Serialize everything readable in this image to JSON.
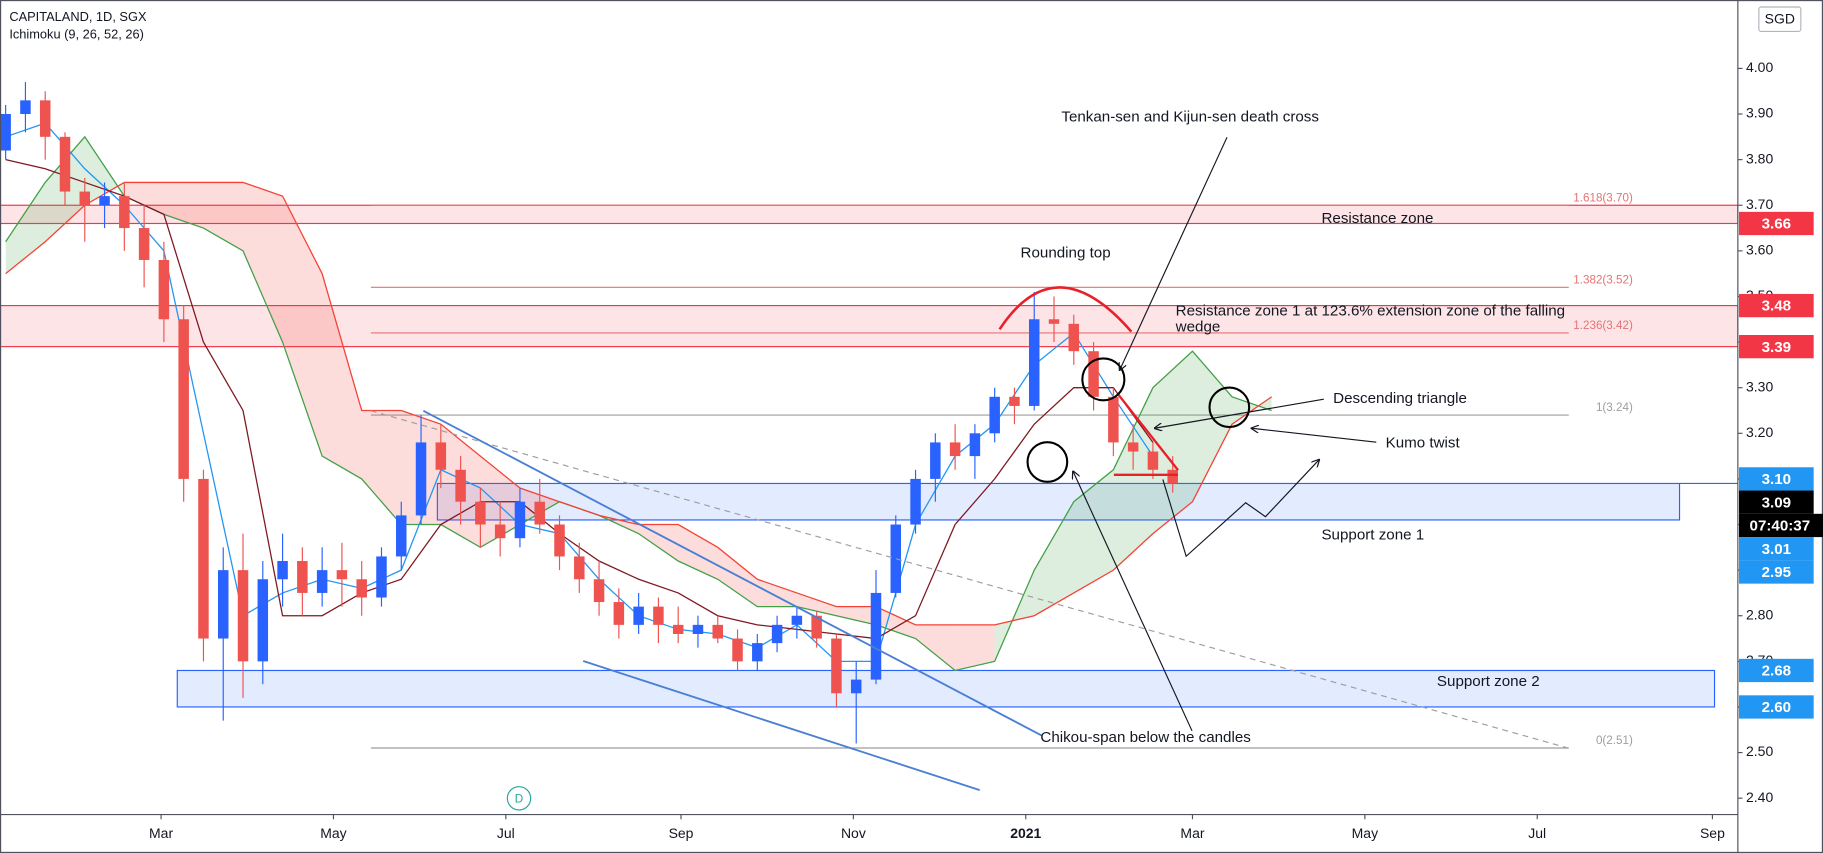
{
  "chart_data": {
    "type": "candlestick",
    "title": "CAPITALAND, 1D, SGX",
    "currency": "SGD",
    "marker_label": "D",
    "xlim": [
      "2020-01-04",
      "2021-09-10"
    ],
    "xticks": [
      {
        "value": "2020-03-01",
        "label": "Mar"
      },
      {
        "value": "2020-05-01",
        "label": "May"
      },
      {
        "value": "2020-07-01",
        "label": "Jul"
      },
      {
        "value": "2020-09-01",
        "label": "Sep"
      },
      {
        "value": "2020-11-01",
        "label": "Nov"
      },
      {
        "value": "2021-01-01",
        "label": "2021"
      },
      {
        "value": "2021-03-01",
        "label": "Mar"
      },
      {
        "value": "2021-05-01",
        "label": "May"
      },
      {
        "value": "2021-07-01",
        "label": "Jul"
      },
      {
        "value": "2021-09-01",
        "label": "Sep"
      }
    ],
    "ylim": [
      2.364,
      4.15
    ],
    "yticks": [
      {
        "value": 2.4,
        "label": "2.40"
      },
      {
        "value": 2.5,
        "label": "2.50"
      },
      {
        "value": 2.6,
        "label": "2.60"
      },
      {
        "value": 2.7,
        "label": "2.70"
      },
      {
        "value": 2.8,
        "label": "2.80"
      },
      {
        "value": 2.9,
        "label": "2.90"
      },
      {
        "value": 3.0,
        "label": "3.00"
      },
      {
        "value": 3.1,
        "label": "3.10"
      },
      {
        "value": 3.2,
        "label": "3.20"
      },
      {
        "value": 3.3,
        "label": "3.30"
      },
      {
        "value": 3.4,
        "label": "3.40"
      },
      {
        "value": 3.5,
        "label": "3.50"
      },
      {
        "value": 3.6,
        "label": "3.60"
      },
      {
        "value": 3.7,
        "label": "3.70"
      },
      {
        "value": 3.8,
        "label": "3.80"
      },
      {
        "value": 3.9,
        "label": "3.90"
      },
      {
        "value": 4.0,
        "label": "4.00"
      }
    ],
    "grid": false,
    "candles": {
      "up_color": "#2962ff",
      "down_color": "#ef5350",
      "x": [
        "2020-01-06",
        "2020-01-13",
        "2020-01-20",
        "2020-01-27",
        "2020-02-03",
        "2020-02-10",
        "2020-02-17",
        "2020-02-24",
        "2020-03-02",
        "2020-03-09",
        "2020-03-16",
        "2020-03-23",
        "2020-03-30",
        "2020-04-06",
        "2020-04-13",
        "2020-04-20",
        "2020-04-27",
        "2020-05-04",
        "2020-05-11",
        "2020-05-18",
        "2020-05-25",
        "2020-06-01",
        "2020-06-08",
        "2020-06-15",
        "2020-06-22",
        "2020-06-29",
        "2020-07-06",
        "2020-07-13",
        "2020-07-20",
        "2020-07-27",
        "2020-08-03",
        "2020-08-10",
        "2020-08-17",
        "2020-08-24",
        "2020-08-31",
        "2020-09-07",
        "2020-09-14",
        "2020-09-21",
        "2020-09-28",
        "2020-10-05",
        "2020-10-12",
        "2020-10-19",
        "2020-10-26",
        "2020-11-02",
        "2020-11-09",
        "2020-11-16",
        "2020-11-23",
        "2020-11-30",
        "2020-12-07",
        "2020-12-14",
        "2020-12-21",
        "2020-12-28",
        "2021-01-04",
        "2021-01-11",
        "2021-01-18",
        "2021-01-25",
        "2021-02-01",
        "2021-02-08",
        "2021-02-15",
        "2021-02-22"
      ],
      "open": [
        3.82,
        3.9,
        3.93,
        3.85,
        3.73,
        3.7,
        3.72,
        3.65,
        3.58,
        3.45,
        3.1,
        2.75,
        2.9,
        2.7,
        2.88,
        2.92,
        2.85,
        2.9,
        2.88,
        2.84,
        2.93,
        3.02,
        3.18,
        3.12,
        3.05,
        3.0,
        2.97,
        3.05,
        3.0,
        2.93,
        2.88,
        2.83,
        2.78,
        2.82,
        2.78,
        2.76,
        2.78,
        2.75,
        2.7,
        2.74,
        2.78,
        2.8,
        2.75,
        2.63,
        2.66,
        2.85,
        3.0,
        3.1,
        3.18,
        3.15,
        3.2,
        3.28,
        3.26,
        3.45,
        3.44,
        3.38,
        3.28,
        3.18,
        3.16,
        3.12
      ],
      "high": [
        3.92,
        3.97,
        3.95,
        3.86,
        3.76,
        3.75,
        3.75,
        3.7,
        3.62,
        3.48,
        3.12,
        2.95,
        2.98,
        2.92,
        2.98,
        2.95,
        2.95,
        2.96,
        2.92,
        2.95,
        3.05,
        3.24,
        3.22,
        3.15,
        3.08,
        3.05,
        3.08,
        3.1,
        3.02,
        2.96,
        2.92,
        2.86,
        2.85,
        2.84,
        2.82,
        2.8,
        2.8,
        2.77,
        2.76,
        2.8,
        2.82,
        2.81,
        2.76,
        2.7,
        2.9,
        3.02,
        3.12,
        3.2,
        3.22,
        3.22,
        3.3,
        3.3,
        3.51,
        3.5,
        3.46,
        3.4,
        3.3,
        3.22,
        3.18,
        3.15
      ],
      "low": [
        3.8,
        3.86,
        3.8,
        3.7,
        3.62,
        3.65,
        3.6,
        3.52,
        3.4,
        3.05,
        2.7,
        2.57,
        2.62,
        2.65,
        2.82,
        2.8,
        2.82,
        2.82,
        2.8,
        2.82,
        2.9,
        3.0,
        3.08,
        3.0,
        2.95,
        2.93,
        2.95,
        2.98,
        2.9,
        2.85,
        2.8,
        2.75,
        2.76,
        2.74,
        2.74,
        2.73,
        2.74,
        2.68,
        2.68,
        2.72,
        2.75,
        2.73,
        2.6,
        2.52,
        2.65,
        2.84,
        2.98,
        3.05,
        3.12,
        3.1,
        3.18,
        3.22,
        3.25,
        3.4,
        3.35,
        3.25,
        3.15,
        3.12,
        3.1,
        3.07
      ],
      "close": [
        3.9,
        3.93,
        3.85,
        3.73,
        3.7,
        3.72,
        3.65,
        3.58,
        3.45,
        3.1,
        2.75,
        2.9,
        2.7,
        2.88,
        2.92,
        2.85,
        2.9,
        2.88,
        2.84,
        2.93,
        3.02,
        3.18,
        3.12,
        3.05,
        3.0,
        2.97,
        3.05,
        3.0,
        2.93,
        2.88,
        2.83,
        2.78,
        2.82,
        2.78,
        2.76,
        2.78,
        2.75,
        2.7,
        2.74,
        2.78,
        2.8,
        2.75,
        2.63,
        2.66,
        2.85,
        3.0,
        3.1,
        3.18,
        3.15,
        3.2,
        3.28,
        3.26,
        3.45,
        3.44,
        3.38,
        3.28,
        3.18,
        3.16,
        3.12,
        3.09
      ]
    },
    "ichimoku": {
      "name": "Ichimoku (9, 26, 52, 26)",
      "x": [
        "2020-01-06",
        "2020-01-20",
        "2020-02-03",
        "2020-02-17",
        "2020-03-02",
        "2020-03-16",
        "2020-03-30",
        "2020-04-13",
        "2020-04-27",
        "2020-05-11",
        "2020-05-25",
        "2020-06-08",
        "2020-06-22",
        "2020-07-06",
        "2020-07-20",
        "2020-08-03",
        "2020-08-17",
        "2020-08-31",
        "2020-09-14",
        "2020-09-28",
        "2020-10-12",
        "2020-10-26",
        "2020-11-09",
        "2020-11-23",
        "2020-12-07",
        "2020-12-21",
        "2021-01-04",
        "2021-01-18",
        "2021-02-01",
        "2021-02-15",
        "2021-03-01",
        "2021-03-15",
        "2021-03-29"
      ],
      "cloud": {
        "up_color": "#43a047",
        "down_color": "#f44336",
        "span_a": [
          3.62,
          3.75,
          3.85,
          3.72,
          3.68,
          3.65,
          3.6,
          3.4,
          3.15,
          3.1,
          3.0,
          3.0,
          2.95,
          3.0,
          3.05,
          3.02,
          2.98,
          2.92,
          2.88,
          2.82,
          2.82,
          2.8,
          2.78,
          2.75,
          2.68,
          2.7,
          2.9,
          3.05,
          3.12,
          3.3,
          3.38,
          3.28,
          3.25
        ],
        "span_b": [
          3.55,
          3.62,
          3.7,
          3.75,
          3.75,
          3.75,
          3.75,
          3.72,
          3.55,
          3.25,
          3.25,
          3.22,
          3.15,
          3.08,
          3.05,
          3.02,
          3.0,
          3.0,
          2.95,
          2.88,
          2.85,
          2.82,
          2.82,
          2.78,
          2.78,
          2.78,
          2.8,
          2.85,
          2.9,
          2.98,
          3.05,
          3.22,
          3.28
        ]
      },
      "lines": [
        {
          "color": "#2196f3",
          "values": [
            3.85,
            3.88,
            3.78,
            3.7,
            3.6,
            3.2,
            2.8,
            2.85,
            2.88,
            2.86,
            2.9,
            3.12,
            3.08,
            3.0,
            2.98,
            2.88,
            2.8,
            2.77,
            2.76,
            2.73,
            2.78,
            2.7,
            2.7,
            3.0,
            3.15,
            3.22,
            3.35,
            3.42,
            3.28,
            3.15,
            null,
            null,
            null
          ]
        },
        {
          "color": "#801922",
          "values": [
            3.8,
            3.78,
            3.75,
            3.72,
            3.68,
            3.4,
            3.25,
            2.8,
            2.8,
            2.85,
            2.88,
            3.0,
            3.05,
            3.05,
            2.98,
            2.92,
            2.88,
            2.85,
            2.8,
            2.78,
            2.77,
            2.76,
            2.75,
            2.8,
            3.0,
            3.1,
            3.22,
            3.3,
            3.3,
            3.18,
            null,
            null,
            null
          ]
        }
      ]
    },
    "zones": [
      {
        "name": "Resistance zone",
        "low": 3.66,
        "high": 3.7,
        "color": "#f23645"
      },
      {
        "name": "Resistance zone 1 at 123.6% extension zone of the falling wedge",
        "low": 3.39,
        "high": 3.48,
        "color": "#f23645"
      },
      {
        "name": "Support zone 1",
        "low": 3.01,
        "high": 3.09,
        "color": "#2962ff"
      },
      {
        "name": "Support zone 2",
        "low": 2.6,
        "high": 2.68,
        "color": "#2962ff"
      }
    ],
    "fib_levels": [
      {
        "label": "1.618(3.70)",
        "value": 3.7,
        "color": "#e57373"
      },
      {
        "label": "1.382(3.52)",
        "value": 3.52,
        "color": "#e57373"
      },
      {
        "label": "1.236(3.42)",
        "value": 3.42,
        "color": "#e57373"
      },
      {
        "label": "1(3.24)",
        "value": 3.24,
        "color": "#9e9e9e"
      },
      {
        "label": "0(2.51)",
        "value": 2.51,
        "color": "#9e9e9e"
      }
    ],
    "annotations": [
      "Tenkan-sen and Kijun-sen death cross",
      "Rounding top",
      "Descending triangle",
      "Kumo twist",
      "Chikou-span below the candles"
    ],
    "price_tags": [
      {
        "value": 3.66,
        "label": "3.66",
        "color": "#f23645"
      },
      {
        "value": 3.48,
        "label": "3.48",
        "color": "#f23645"
      },
      {
        "value": 3.39,
        "label": "3.39",
        "color": "#f23645"
      },
      {
        "value": 3.1,
        "label": "3.10",
        "color": "#2196f3"
      },
      {
        "value": 3.09,
        "label": "3.09",
        "color": "#000000",
        "countdown": "07:40:37"
      },
      {
        "value": 3.01,
        "label": "3.01",
        "color": "#2196f3"
      },
      {
        "value": 2.95,
        "label": "2.95",
        "color": "#2196f3"
      },
      {
        "value": 2.68,
        "label": "2.68",
        "color": "#2196f3"
      },
      {
        "value": 2.6,
        "label": "2.60",
        "color": "#2196f3"
      }
    ]
  }
}
